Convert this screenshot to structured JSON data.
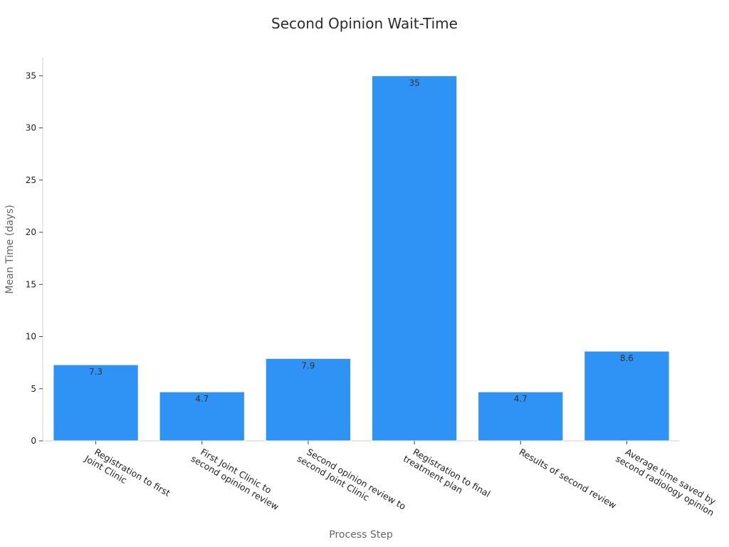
{
  "chart_data": {
    "type": "bar",
    "title": "Second Opinion Wait-Time",
    "xlabel": "Process Step",
    "ylabel": "Mean Time (days)",
    "categories": [
      [
        "Registration to first",
        "Joint Clinic"
      ],
      [
        "First Joint Clinic to",
        "second opinion review"
      ],
      [
        "Second opinion review to",
        "second Joint Clinic"
      ],
      [
        "Registration to final",
        "treatment plan"
      ],
      [
        "Results of second review"
      ],
      [
        "Average time saved by",
        "second radiology opinion"
      ]
    ],
    "values": [
      7.3,
      4.7,
      7.9,
      35,
      4.7,
      8.6
    ],
    "data_labels": [
      "7.3",
      "4.7",
      "7.9",
      "35",
      "4.7",
      "8.6"
    ],
    "ylim": [
      0,
      36.8
    ],
    "yticks": [
      0,
      5,
      10,
      15,
      20,
      25,
      30,
      35
    ],
    "bar_color": "#2f93f6",
    "grid": false,
    "legend": "none"
  }
}
